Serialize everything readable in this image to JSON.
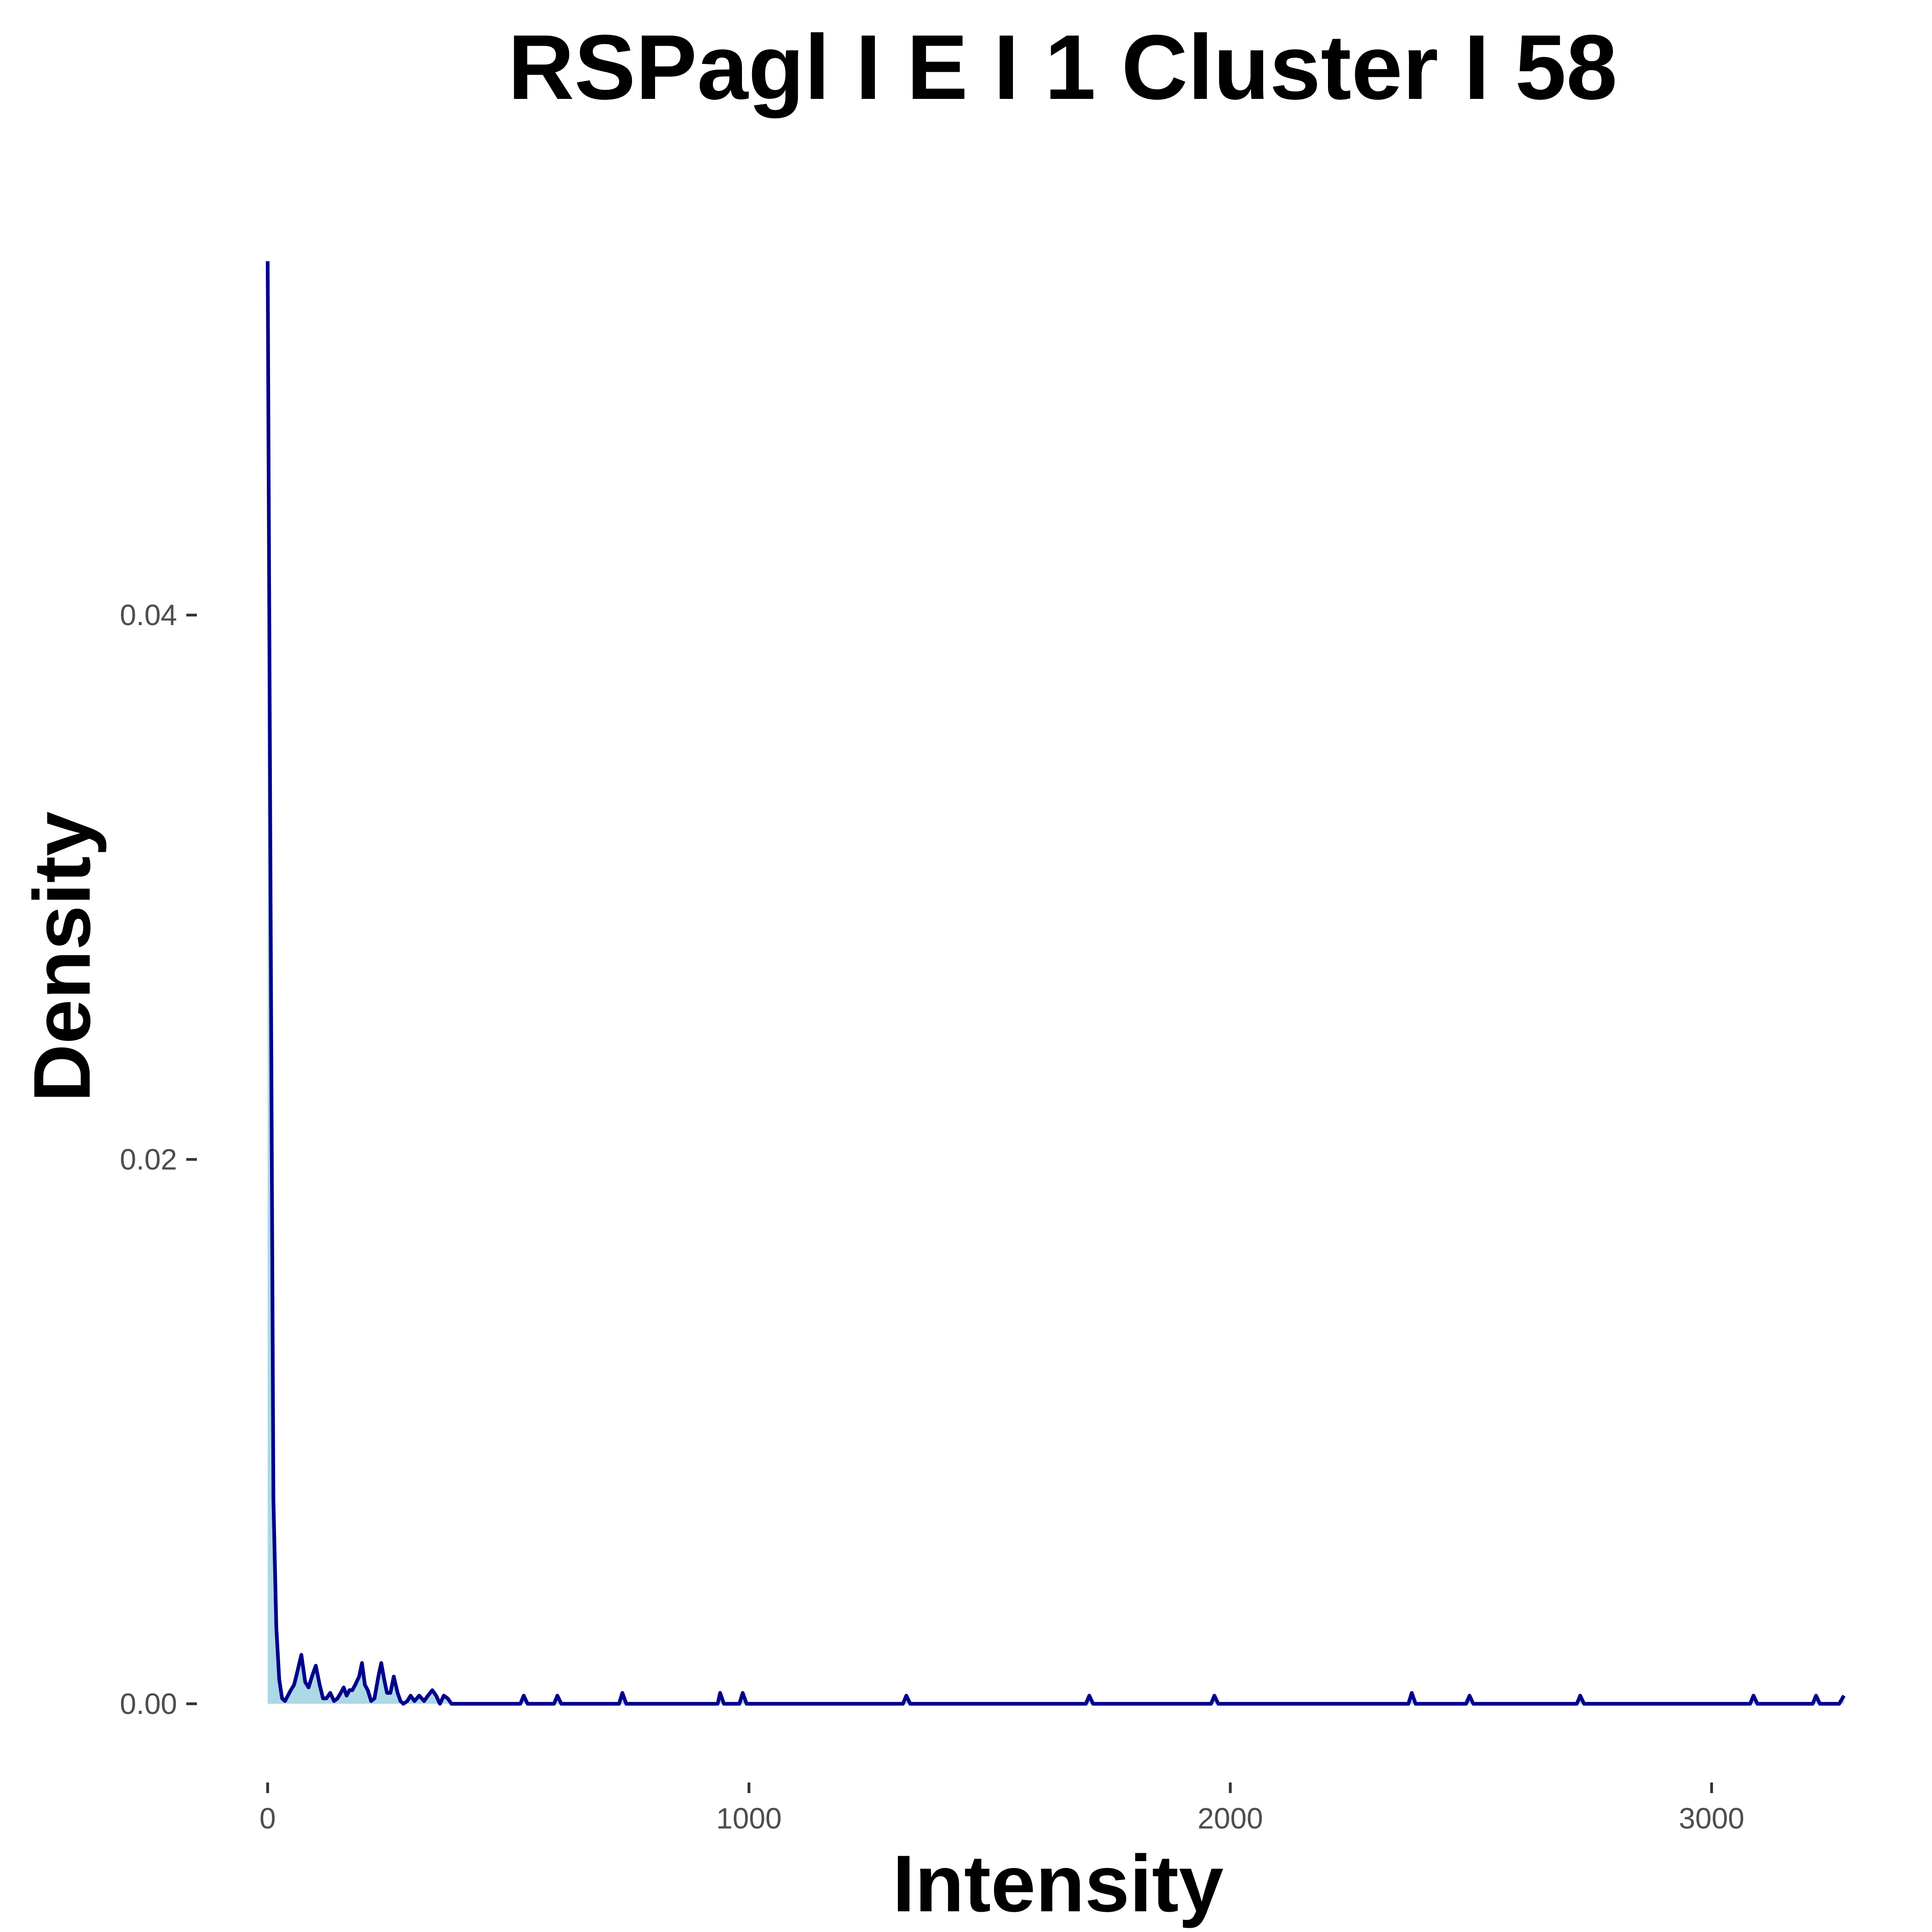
{
  "chart_data": {
    "type": "area",
    "title": "RSPagl I E I 1 Cluster I  58",
    "xlabel": "Intensity",
    "ylabel": "Density",
    "xlim": [
      -40,
      3305
    ],
    "ylim": [
      -0.0023,
      0.0555
    ],
    "x_ticks": [
      {
        "value": 0,
        "label": "0"
      },
      {
        "value": 1000,
        "label": "1000"
      },
      {
        "value": 2000,
        "label": "2000"
      },
      {
        "value": 3000,
        "label": "3000"
      }
    ],
    "y_ticks": [
      {
        "value": 0.0,
        "label": "0.00"
      },
      {
        "value": 0.02,
        "label": "0.02"
      },
      {
        "value": 0.04,
        "label": "0.04"
      }
    ],
    "grid": false,
    "legend": "none",
    "line_color": "#00008b",
    "fill_color": "#add8e6",
    "series": [
      {
        "x": [
          0,
          6,
          12,
          18,
          24,
          30,
          36,
          42,
          48,
          55,
          62,
          70,
          78,
          85,
          92,
          100,
          108,
          115,
          122,
          130,
          138,
          145,
          152,
          158,
          164,
          170,
          176,
          182,
          190,
          196,
          202,
          208,
          215,
          222,
          230,
          236,
          242,
          248,
          255,
          262,
          270,
          276,
          282,
          290,
          297,
          305,
          315,
          325,
          333,
          342,
          350,
          358,
          366,
          374,
          382,
          390,
          400,
          525,
          532,
          540,
          595,
          602,
          610,
          730,
          737,
          745,
          935,
          940,
          948,
          980,
          987,
          995,
          1320,
          1327,
          1335,
          1700,
          1707,
          1715,
          1960,
          1967,
          1975,
          2370,
          2377,
          2385,
          2490,
          2497,
          2505,
          2720,
          2727,
          2735,
          3080,
          3087,
          3095,
          3210,
          3217,
          3225,
          3255,
          3265,
          3275
        ],
        "y": [
          0.053,
          0.03,
          0.0075,
          0.0028,
          0.0009,
          0.0002,
          0.0001,
          0.0003,
          0.0005,
          0.0007,
          0.0012,
          0.0018,
          0.0008,
          0.0006,
          0.001,
          0.0014,
          0.0007,
          0.0002,
          0.0002,
          0.0004,
          0.0001,
          0.0002,
          0.0004,
          0.0006,
          0.0003,
          0.0005,
          0.0005,
          0.0007,
          0.001,
          0.0015,
          0.0007,
          0.0005,
          0.0001,
          0.0002,
          0.001,
          0.0015,
          0.0009,
          0.0004,
          0.0004,
          0.001,
          0.0004,
          0.0001,
          0.0,
          0.0001,
          0.0003,
          0.0001,
          0.0003,
          0.0001,
          0.0003,
          0.0005,
          0.0003,
          0.0,
          0.0003,
          0.0002,
          0.0,
          0.0,
          0.0,
          0.0,
          0.0003,
          0.0,
          0.0,
          0.0003,
          0.0,
          0.0,
          0.0004,
          0.0,
          0.0,
          0.0004,
          0.0,
          0.0,
          0.0004,
          0.0,
          0.0,
          0.0003,
          0.0,
          0.0,
          0.0003,
          0.0,
          0.0,
          0.0003,
          0.0,
          0.0,
          0.0004,
          0.0,
          0.0,
          0.0003,
          0.0,
          0.0,
          0.0003,
          0.0,
          0.0,
          0.0003,
          0.0,
          0.0,
          0.0003,
          0.0,
          0.0,
          0.0,
          0.0003
        ]
      }
    ]
  }
}
